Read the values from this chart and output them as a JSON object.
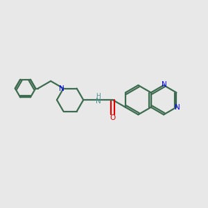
{
  "background_color": "#e8e8e8",
  "bond_color": "#3d6b4f",
  "N_color": "#0000ee",
  "O_color": "#dd0000",
  "NH_color": "#4a9090",
  "figsize": [
    3.0,
    3.0
  ],
  "dpi": 100,
  "xlim": [
    0,
    10
  ],
  "ylim": [
    0,
    10
  ],
  "bond_lw": 1.6
}
